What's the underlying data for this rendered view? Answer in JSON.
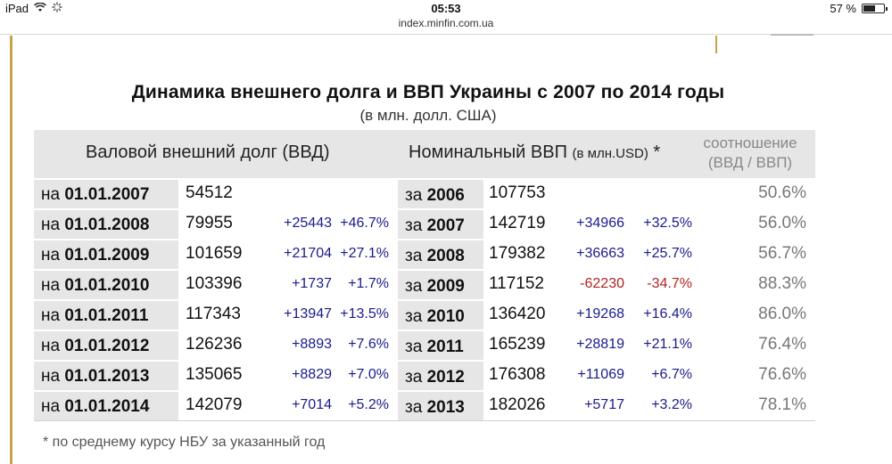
{
  "status_bar": {
    "device": "iPad",
    "time": "05:53",
    "battery_percent": "57 %",
    "battery_level": 0.57
  },
  "url": "index.minfin.com.ua",
  "title": "Динамика внешнего долга и ВВП Украины с 2007 по 2014 годы",
  "subtitle": "(в млн. долл. США)",
  "table": {
    "header": {
      "debt": "Валовой внешний долг (ВВД)",
      "gdp": "Номинальный ВВП",
      "gdp_unit": "(в млн.USD)",
      "gdp_star": "*",
      "ratio_line1": "соотношение",
      "ratio_line2": "(ВВД / ВВП)"
    },
    "rows": [
      {
        "date_prefix": "на",
        "date": "01.01.2007",
        "debt": "54512",
        "debt_change": "",
        "debt_pct": "",
        "year_prefix": "за",
        "year": "2006",
        "gdp": "107753",
        "gdp_change": "",
        "gdp_pct": "",
        "ratio": "50.6%"
      },
      {
        "date_prefix": "на",
        "date": "01.01.2008",
        "debt": "79955",
        "debt_change": "+25443",
        "debt_pct": "+46.7%",
        "year_prefix": "за",
        "year": "2007",
        "gdp": "142719",
        "gdp_change": "+34966",
        "gdp_pct": "+32.5%",
        "ratio": "56.0%"
      },
      {
        "date_prefix": "на",
        "date": "01.01.2009",
        "debt": "101659",
        "debt_change": "+21704",
        "debt_pct": "+27.1%",
        "year_prefix": "за",
        "year": "2008",
        "gdp": "179382",
        "gdp_change": "+36663",
        "gdp_pct": "+25.7%",
        "ratio": "56.7%"
      },
      {
        "date_prefix": "на",
        "date": "01.01.2010",
        "debt": "103396",
        "debt_change": "+1737",
        "debt_pct": "+1.7%",
        "year_prefix": "за",
        "year": "2009",
        "gdp": "117152",
        "gdp_change": "-62230",
        "gdp_pct": "-34.7%",
        "ratio": "88.3%"
      },
      {
        "date_prefix": "на",
        "date": "01.01.2011",
        "debt": "117343",
        "debt_change": "+13947",
        "debt_pct": "+13.5%",
        "year_prefix": "за",
        "year": "2010",
        "gdp": "136420",
        "gdp_change": "+19268",
        "gdp_pct": "+16.4%",
        "ratio": "86.0%"
      },
      {
        "date_prefix": "на",
        "date": "01.01.2012",
        "debt": "126236",
        "debt_change": "+8893",
        "debt_pct": "+7.6%",
        "year_prefix": "за",
        "year": "2011",
        "gdp": "165239",
        "gdp_change": "+28819",
        "gdp_pct": "+21.1%",
        "ratio": "76.4%"
      },
      {
        "date_prefix": "на",
        "date": "01.01.2013",
        "debt": "135065",
        "debt_change": "+8829",
        "debt_pct": "+7.0%",
        "year_prefix": "за",
        "year": "2012",
        "gdp": "176308",
        "gdp_change": "+11069",
        "gdp_pct": "+6.7%",
        "ratio": "76.6%"
      },
      {
        "date_prefix": "на",
        "date": "01.01.2014",
        "debt": "142079",
        "debt_change": "+7014",
        "debt_pct": "+5.2%",
        "year_prefix": "за",
        "year": "2013",
        "gdp": "182026",
        "gdp_change": "+5717",
        "gdp_pct": "+3.2%",
        "ratio": "78.1%"
      }
    ]
  },
  "footnote": "* по среднему курсу НБУ за указанный год"
}
